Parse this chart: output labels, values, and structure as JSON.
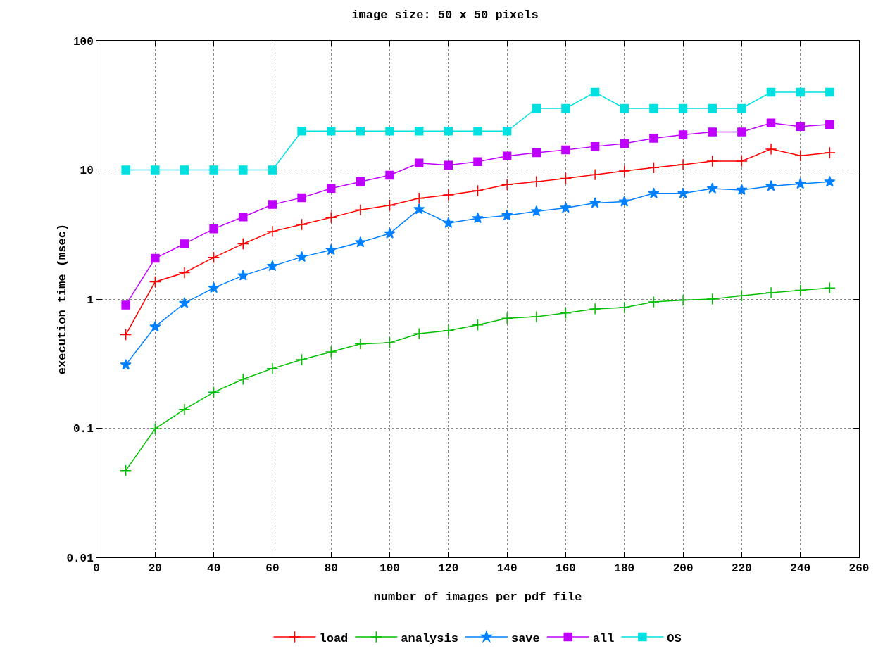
{
  "chart_data": {
    "type": "line",
    "title": "image size: 50 x 50 pixels",
    "xlabel": "number of images per pdf file",
    "ylabel": "execution time (msec)",
    "x": [
      10,
      20,
      30,
      40,
      50,
      60,
      70,
      80,
      90,
      100,
      110,
      120,
      130,
      140,
      150,
      160,
      170,
      180,
      190,
      200,
      210,
      220,
      230,
      240,
      250
    ],
    "series": [
      {
        "name": "load",
        "color": "#ff0000",
        "marker": "cross",
        "values": [
          0.53,
          1.36,
          1.6,
          2.1,
          2.68,
          3.34,
          3.78,
          4.28,
          4.9,
          5.33,
          6.04,
          6.4,
          6.9,
          7.7,
          8.1,
          8.6,
          9.2,
          9.8,
          10.4,
          11,
          11.7,
          11.7,
          14.5,
          12.9,
          13.6
        ]
      },
      {
        "name": "analysis",
        "color": "#00c000",
        "marker": "cross",
        "values": [
          0.047,
          0.099,
          0.14,
          0.19,
          0.24,
          0.29,
          0.34,
          0.39,
          0.45,
          0.46,
          0.54,
          0.57,
          0.63,
          0.71,
          0.73,
          0.78,
          0.84,
          0.86,
          0.95,
          0.98,
          1.0,
          1.06,
          1.12,
          1.17,
          1.22
        ]
      },
      {
        "name": "save",
        "color": "#0080ff",
        "marker": "star",
        "values": [
          0.31,
          0.61,
          0.93,
          1.22,
          1.52,
          1.8,
          2.12,
          2.4,
          2.75,
          3.22,
          4.96,
          3.88,
          4.22,
          4.44,
          4.78,
          5.08,
          5.54,
          5.68,
          6.58,
          6.58,
          7.17,
          7.0,
          7.5,
          7.8,
          8.1
        ]
      },
      {
        "name": "all",
        "color": "#c000ff",
        "marker": "square",
        "values": [
          0.9,
          2.07,
          2.68,
          3.5,
          4.33,
          5.4,
          6.1,
          7.2,
          8.1,
          9.1,
          11.3,
          10.9,
          11.6,
          12.8,
          13.6,
          14.3,
          15.2,
          16,
          17.6,
          18.7,
          19.7,
          19.7,
          23.1,
          21.7,
          22.5
        ]
      },
      {
        "name": "OS",
        "color": "#00e0e0",
        "marker": "square",
        "values": [
          10,
          10,
          10,
          10,
          10,
          10,
          20,
          20,
          20,
          20,
          20,
          20,
          20,
          20,
          30,
          30,
          40,
          30,
          30,
          30,
          30,
          30,
          40,
          40,
          40
        ]
      }
    ],
    "xlim": [
      0,
      260
    ],
    "xticks": [
      0,
      20,
      40,
      60,
      80,
      100,
      120,
      140,
      160,
      180,
      200,
      220,
      240,
      260
    ],
    "ylim": [
      0.01,
      100
    ],
    "yticks": [
      0.01,
      0.1,
      1,
      10,
      100
    ],
    "log": true,
    "grid": true,
    "legend": "bottom",
    "line_style": "solid"
  }
}
